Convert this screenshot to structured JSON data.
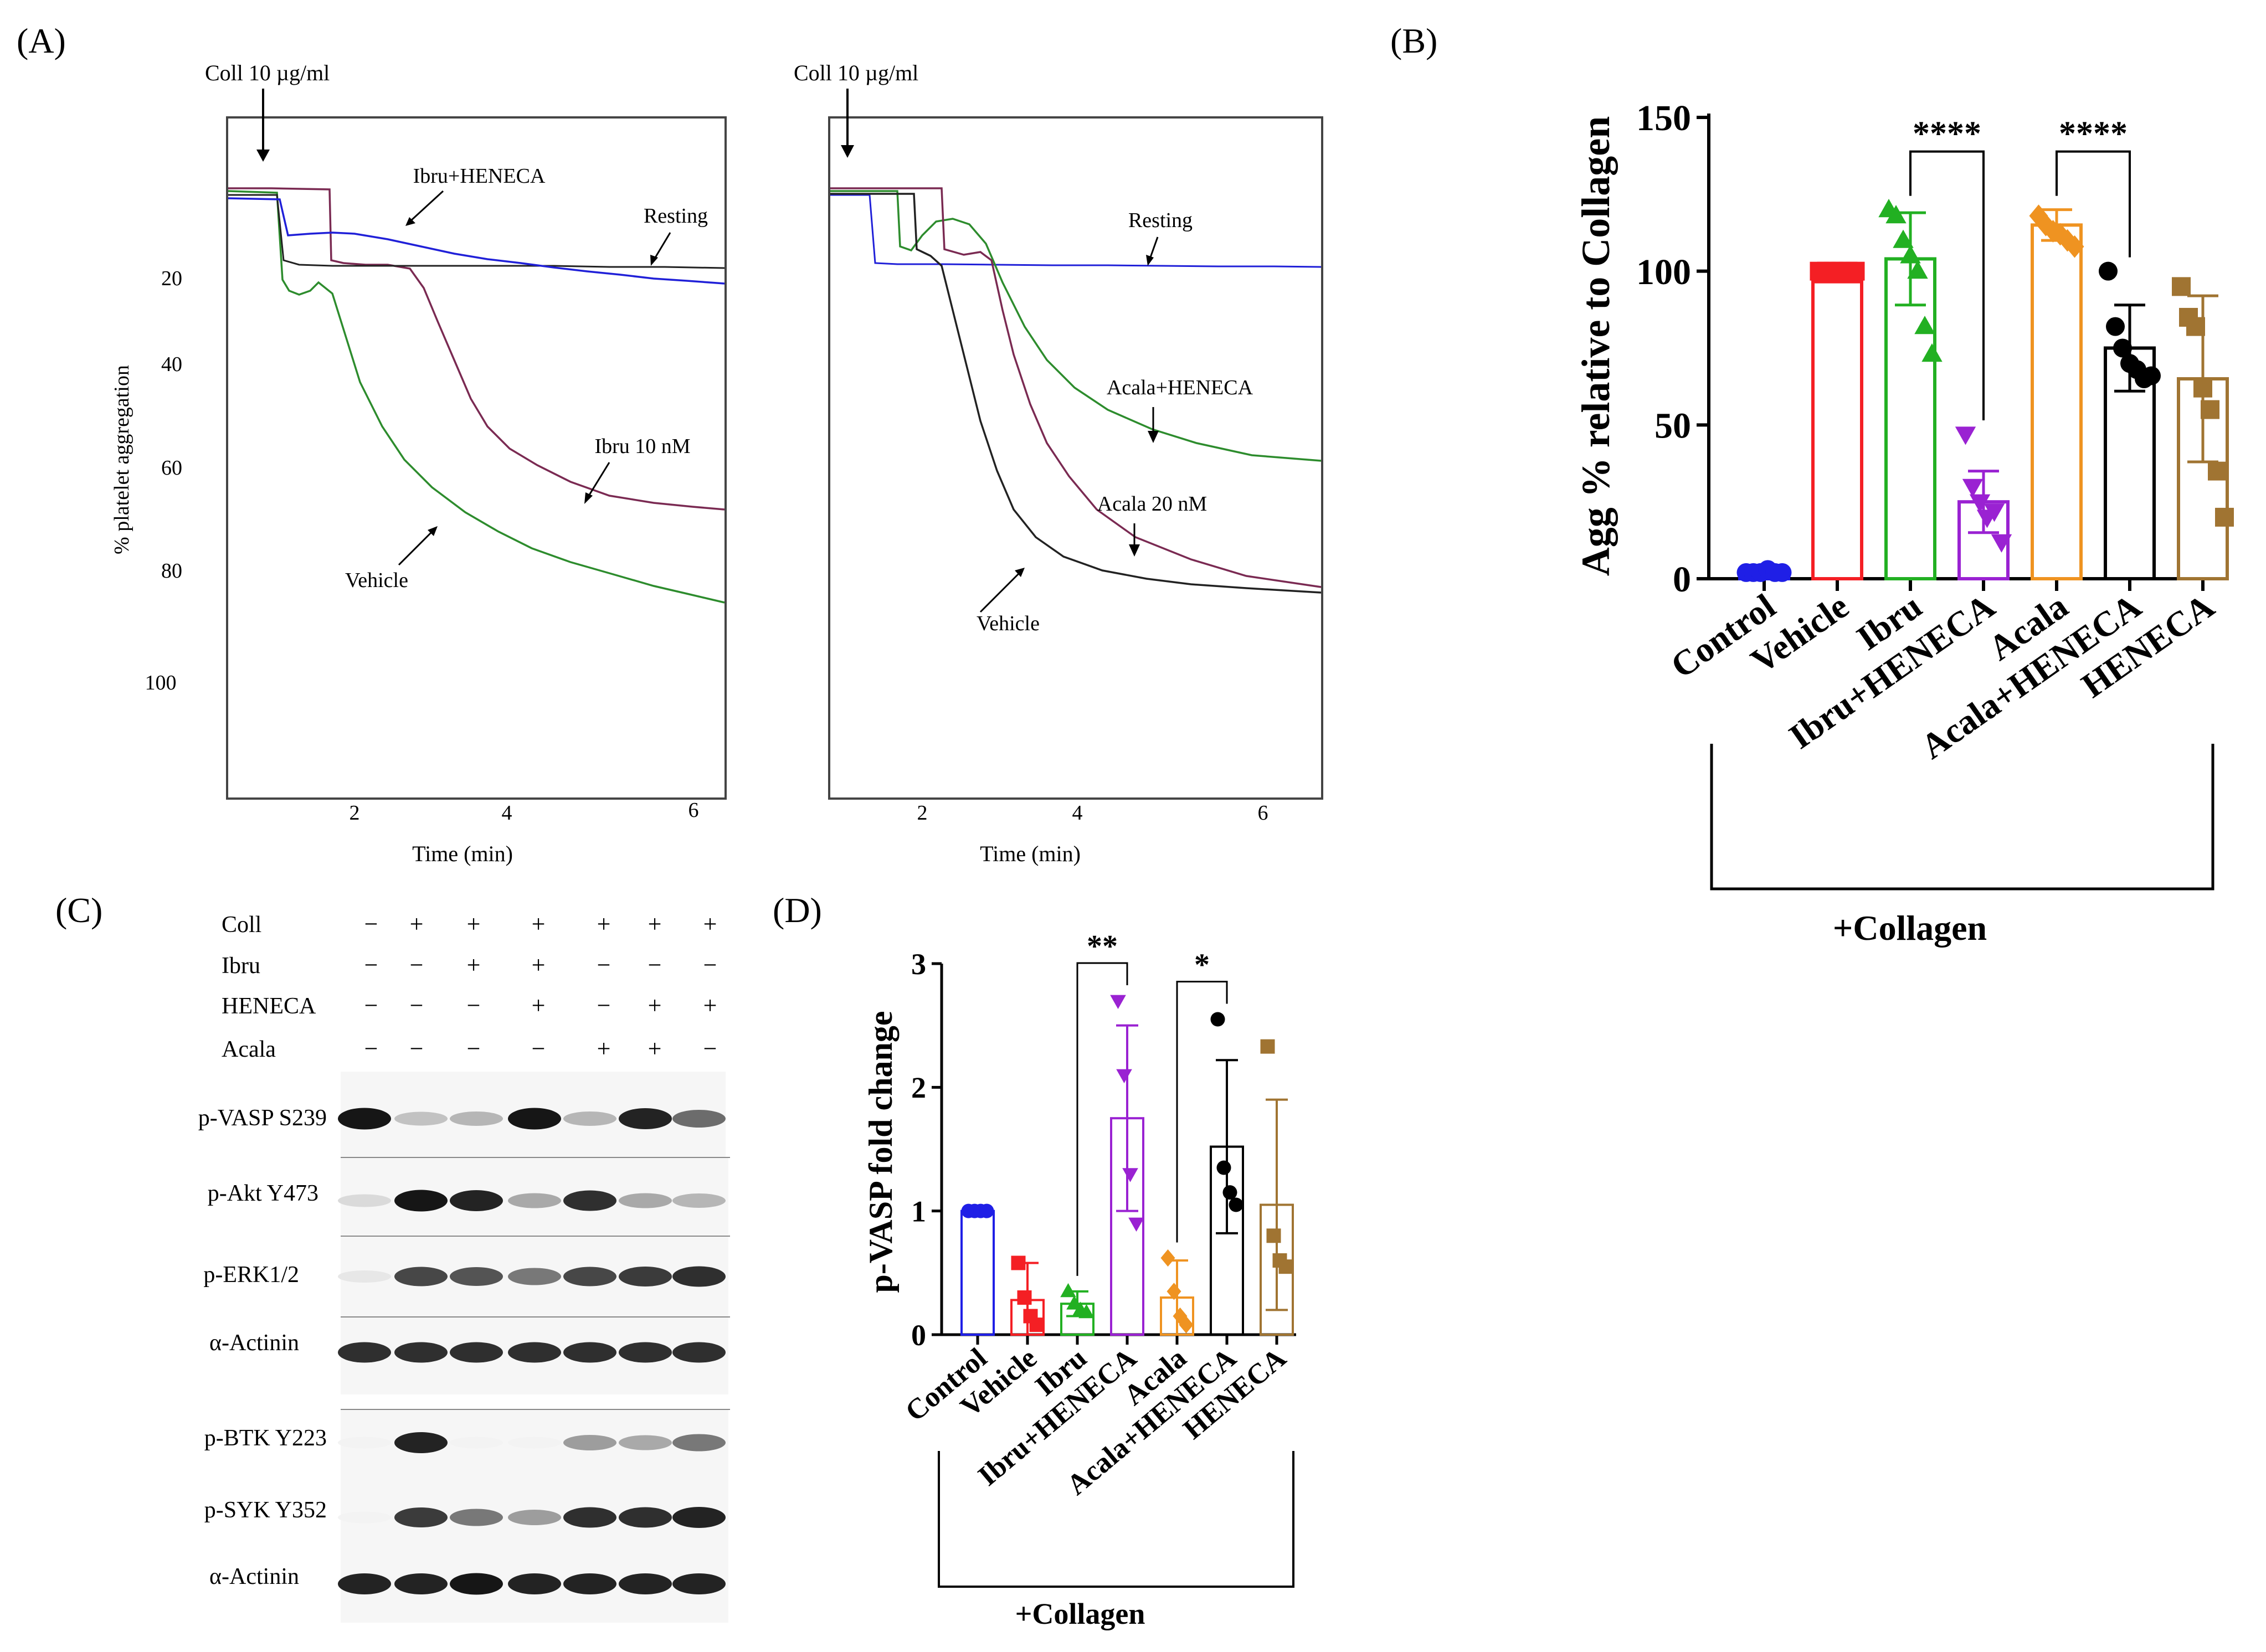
{
  "panel_labels": {
    "a": "(A)",
    "b": "(B)",
    "c": "(C)",
    "d": "(D)"
  },
  "colors": {
    "blue": "#1f1fe6",
    "red": "#f41f24",
    "green": "#22b022",
    "purple": "#9a22d2",
    "orange": "#ef9321",
    "black": "#000000",
    "brown": "#a07432",
    "trace_green": "#2d8c2d",
    "trace_maroon": "#7a2a52",
    "trace_blue": "#2020d8",
    "trace_black": "#222222"
  },
  "panel_a": {
    "left": {
      "stimulus": "Coll 10 µg/ml",
      "ylabel": "% platelet aggregation",
      "xlabel": "Time (min)",
      "yticks": [
        "20",
        "40",
        "60",
        "80",
        "100"
      ],
      "xticks": [
        "2",
        "4",
        "6"
      ],
      "labels": {
        "combo": "Ibru+HENECA",
        "resting": "Resting",
        "drug": "Ibru 10 nM",
        "vehicle": "Vehicle"
      }
    },
    "right": {
      "stimulus": "Coll 10 µg/ml",
      "xlabel": "Time (min)",
      "xticks": [
        "2",
        "4",
        "6"
      ],
      "labels": {
        "resting": "Resting",
        "combo": "Acala+HENECA",
        "drug": "Acala 20 nM",
        "vehicle": "Vehicle"
      }
    }
  },
  "chart_data": [
    {
      "panel": "B",
      "type": "bar",
      "ylabel": "Agg % relative to Collagen",
      "ylim": [
        0,
        150
      ],
      "yticks": [
        0,
        50,
        100,
        150
      ],
      "categories": [
        "Control",
        "Vehicle",
        "Ibru",
        "Ibru+HENECA",
        "Acala",
        "Acala+HENECA",
        "HENECA"
      ],
      "means": [
        2,
        100,
        104,
        25,
        115,
        75,
        65
      ],
      "sd": [
        0,
        0,
        15,
        10,
        5,
        14,
        27
      ],
      "points": [
        [
          2,
          2,
          2,
          3,
          2,
          2
        ],
        [
          100,
          100,
          100,
          100,
          100,
          100
        ],
        [
          120,
          118,
          110,
          105,
          100,
          82,
          73
        ],
        [
          47,
          30,
          25,
          20,
          22,
          12
        ],
        [
          118,
          115,
          113,
          112,
          110,
          108
        ],
        [
          100,
          82,
          75,
          70,
          68,
          65,
          66
        ],
        [
          95,
          85,
          82,
          62,
          55,
          35,
          20
        ]
      ],
      "markers": [
        "circle",
        "square",
        "triangle-up",
        "triangle-down",
        "diamond",
        "circle",
        "square"
      ],
      "significance": [
        {
          "from": "Ibru",
          "to": "Ibru+HENECA",
          "label": "****"
        },
        {
          "from": "Acala",
          "to": "Acala+HENECA",
          "label": "****"
        }
      ],
      "group_label": "+Collagen"
    },
    {
      "panel": "D",
      "type": "bar",
      "ylabel": "p-VASP fold change",
      "ylim": [
        0,
        3
      ],
      "yticks": [
        0,
        1,
        2,
        3
      ],
      "categories": [
        "Control",
        "Vehicle",
        "Ibru",
        "Ibru+HENECA",
        "Acala",
        "Acala+HENECA",
        "HENECA"
      ],
      "means": [
        1.0,
        0.28,
        0.25,
        1.75,
        0.3,
        1.52,
        1.05
      ],
      "sd": [
        0,
        0.3,
        0.1,
        0.75,
        0.3,
        0.7,
        0.85
      ],
      "points": [
        [
          1,
          1,
          1,
          1
        ],
        [
          0.58,
          0.3,
          0.15,
          0.08
        ],
        [
          0.35,
          0.25,
          0.2,
          0.18
        ],
        [
          2.7,
          2.1,
          1.3,
          0.9
        ],
        [
          0.62,
          0.35,
          0.15,
          0.08
        ],
        [
          2.55,
          1.35,
          1.15,
          1.05
        ],
        [
          2.33,
          0.8,
          0.6,
          0.55
        ]
      ],
      "markers": [
        "circle",
        "square",
        "triangle-up",
        "triangle-down",
        "diamond",
        "circle",
        "square"
      ],
      "significance": [
        {
          "from": "Ibru",
          "to": "Ibru+HENECA",
          "label": "**"
        },
        {
          "from": "Acala",
          "to": "Acala+HENECA",
          "label": "*"
        }
      ],
      "group_label": "+Collagen"
    }
  ],
  "panel_c": {
    "conditions": [
      {
        "name": "Coll",
        "values": [
          "−",
          "+",
          "+",
          "+",
          "+",
          "+",
          "+"
        ]
      },
      {
        "name": "Ibru",
        "values": [
          "−",
          "−",
          "+",
          "+",
          "−",
          "−",
          "−"
        ]
      },
      {
        "name": "HENECA",
        "values": [
          "−",
          "−",
          "−",
          "+",
          "−",
          "+",
          "+"
        ]
      },
      {
        "name": "Acala",
        "values": [
          "−",
          "−",
          "−",
          "−",
          "+",
          "+",
          "−"
        ]
      }
    ],
    "rows": [
      {
        "label": "p-VASP S239",
        "intensity": [
          0.95,
          0.25,
          0.3,
          0.95,
          0.3,
          0.9,
          0.6
        ]
      },
      {
        "label": "p-Akt Y473",
        "intensity": [
          0.15,
          0.95,
          0.9,
          0.35,
          0.85,
          0.35,
          0.3
        ]
      },
      {
        "label": "p-ERK1/2",
        "intensity": [
          0.1,
          0.75,
          0.7,
          0.55,
          0.75,
          0.8,
          0.85
        ]
      },
      {
        "label": "α-Actinin",
        "intensity": [
          0.85,
          0.85,
          0.85,
          0.85,
          0.85,
          0.85,
          0.85
        ]
      },
      {
        "label": "p-BTK Y223",
        "intensity": [
          0.05,
          0.9,
          0.05,
          0.05,
          0.4,
          0.35,
          0.55
        ]
      },
      {
        "label": "p-SYK Y352",
        "intensity": [
          0.05,
          0.8,
          0.55,
          0.4,
          0.85,
          0.85,
          0.9
        ]
      },
      {
        "label": "α-Actinin",
        "intensity": [
          0.9,
          0.9,
          0.95,
          0.9,
          0.9,
          0.9,
          0.9
        ]
      }
    ]
  }
}
